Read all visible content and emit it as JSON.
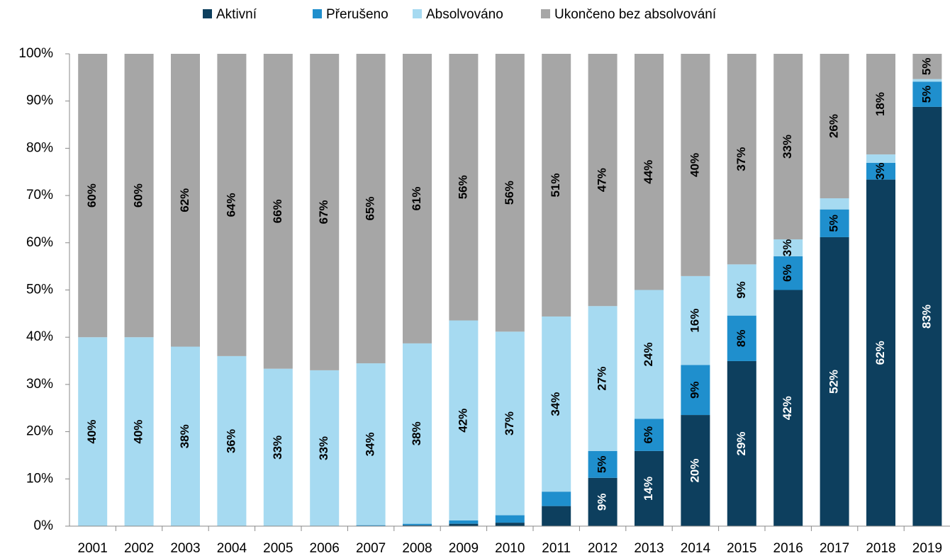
{
  "chart_data": {
    "type": "bar",
    "stacking": "percent",
    "categories": [
      "2001",
      "2002",
      "2003",
      "2004",
      "2005",
      "2006",
      "2007",
      "2008",
      "2009",
      "2010",
      "2011",
      "2012",
      "2013",
      "2014",
      "2015",
      "2016",
      "2017",
      "2018",
      "2019"
    ],
    "series": [
      {
        "name": "Aktivní",
        "color": "#0d3f5e",
        "label_color": "#ffffff",
        "values": [
          0,
          0,
          0,
          0,
          0,
          0,
          0,
          0.2,
          0.5,
          0.7,
          3.9,
          9,
          14,
          20,
          29,
          42,
          52,
          62,
          83
        ],
        "value_labels": [
          null,
          null,
          null,
          null,
          null,
          null,
          null,
          null,
          null,
          null,
          null,
          "9%",
          "14%",
          "20%",
          "29%",
          "42%",
          "52%",
          "62%",
          "83%"
        ]
      },
      {
        "name": "Přerušeno",
        "color": "#1f8fcd",
        "label_color": "#000000",
        "values": [
          0,
          0,
          0,
          0,
          0,
          0,
          0.2,
          0.3,
          0.7,
          1.5,
          2.8,
          5,
          6,
          9,
          8,
          6,
          5,
          3,
          5
        ],
        "value_labels": [
          null,
          null,
          null,
          null,
          null,
          null,
          null,
          null,
          null,
          null,
          null,
          "5%",
          "6%",
          "9%",
          "8%",
          "6%",
          "5%",
          "3%",
          "5%"
        ]
      },
      {
        "name": "Absolvováno",
        "color": "#a6daf1",
        "label_color": "#000000",
        "values": [
          40,
          40,
          38,
          36,
          33,
          33,
          34,
          38,
          42,
          37,
          34,
          27,
          24,
          16,
          9,
          3,
          2,
          1.5,
          0.5
        ],
        "value_labels": [
          "40%",
          "40%",
          "38%",
          "36%",
          "33%",
          "33%",
          "34%",
          "38%",
          "42%",
          "37%",
          "34%",
          "27%",
          "24%",
          "16%",
          "9%",
          "3%",
          null,
          null,
          null
        ]
      },
      {
        "name": "Ukončeno bez absolvování",
        "color": "#a6a6a6",
        "label_color": "#000000",
        "values": [
          60,
          60,
          62,
          64,
          66,
          67,
          65,
          61,
          56,
          56,
          51,
          47,
          44,
          40,
          37,
          33,
          26,
          18,
          5
        ],
        "value_labels": [
          "60%",
          "60%",
          "62%",
          "64%",
          "66%",
          "67%",
          "65%",
          "61%",
          "56%",
          "56%",
          "51%",
          "47%",
          "44%",
          "40%",
          "37%",
          "33%",
          "26%",
          "18%",
          "5%"
        ]
      }
    ],
    "ylim": [
      0,
      100
    ],
    "yticks": [
      {
        "value": 0,
        "label": "0%"
      },
      {
        "value": 10,
        "label": "10%"
      },
      {
        "value": 20,
        "label": "20%"
      },
      {
        "value": 30,
        "label": "30%"
      },
      {
        "value": 40,
        "label": "40%"
      },
      {
        "value": 50,
        "label": "50%"
      },
      {
        "value": 60,
        "label": "60%"
      },
      {
        "value": 70,
        "label": "70%"
      },
      {
        "value": 80,
        "label": "80%"
      },
      {
        "value": 90,
        "label": "90%"
      },
      {
        "value": 100,
        "label": "100%"
      }
    ],
    "grid": false,
    "legend": "top"
  }
}
